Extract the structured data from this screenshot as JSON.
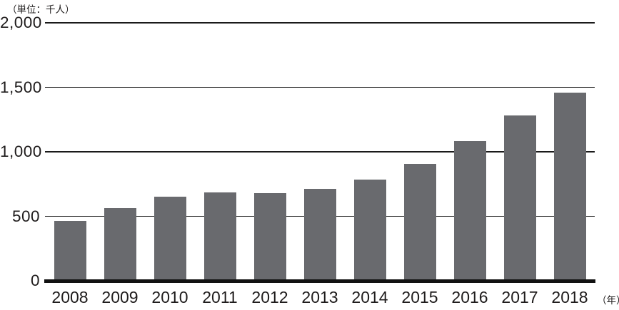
{
  "chart_data": {
    "type": "bar",
    "title": "",
    "unit_label": "（単位：千人）",
    "x_suffix_label": "（年）",
    "categories": [
      "2008",
      "2009",
      "2010",
      "2011",
      "2012",
      "2013",
      "2014",
      "2015",
      "2016",
      "2017",
      "2018"
    ],
    "values": [
      465,
      565,
      650,
      685,
      680,
      715,
      785,
      905,
      1085,
      1280,
      1460
    ],
    "xlabel": "",
    "ylabel": "",
    "ylim": [
      0,
      2000
    ],
    "yticks": [
      {
        "value": 0,
        "label": "0"
      },
      {
        "value": 500,
        "label": "500"
      },
      {
        "value": 1000,
        "label": "1,000"
      },
      {
        "value": 1500,
        "label": "1,500"
      },
      {
        "value": 2000,
        "label": "2,000"
      }
    ],
    "grid": true,
    "legend": "none",
    "colors": {
      "bar": "#696a6e",
      "line": "#1a1a1a",
      "axis": "#111111",
      "text": "#1f1c1c",
      "background": "#ffffff"
    }
  }
}
